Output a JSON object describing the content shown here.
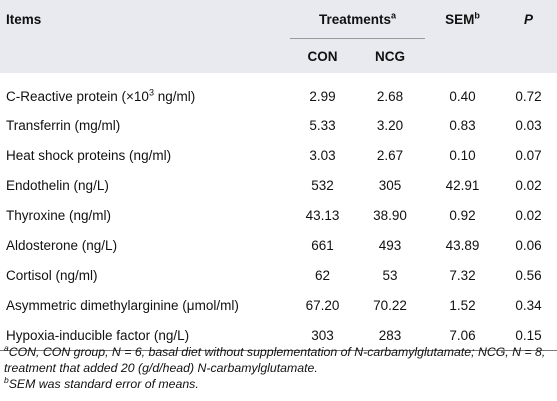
{
  "table": {
    "headers": {
      "items": "Items",
      "treatments": "Treatments",
      "treatments_sup": "a",
      "sem": "SEM",
      "sem_sup": "b",
      "p": "P",
      "con": "CON",
      "ncg": "NCG"
    },
    "rows": [
      {
        "item_pre": "C-Reactive protein (×10",
        "item_sup": "3",
        "item_post": " ng/ml)",
        "con": "2.99",
        "ncg": "2.68",
        "sem": "0.40",
        "p": "0.72"
      },
      {
        "item": "Transferrin (mg/ml)",
        "con": "5.33",
        "ncg": "3.20",
        "sem": "0.83",
        "p": "0.03"
      },
      {
        "item": "Heat shock proteins (ng/ml)",
        "con": "3.03",
        "ncg": "2.67",
        "sem": "0.10",
        "p": "0.07"
      },
      {
        "item": "Endothelin (ng/L)",
        "con": "532",
        "ncg": "305",
        "sem": "42.91",
        "p": "0.02"
      },
      {
        "item": "Thyroxine (ng/ml)",
        "con": "43.13",
        "ncg": "38.90",
        "sem": "0.92",
        "p": "0.02"
      },
      {
        "item": "Aldosterone (ng/L)",
        "con": "661",
        "ncg": "493",
        "sem": "43.89",
        "p": "0.06"
      },
      {
        "item": "Cortisol (ng/ml)",
        "con": "62",
        "ncg": "53",
        "sem": "7.32",
        "p": "0.56"
      },
      {
        "item": "Asymmetric dimethylarginine (μmol/ml)",
        "con": "67.20",
        "ncg": "70.22",
        "sem": "1.52",
        "p": "0.34"
      },
      {
        "item": "Hypoxia-inducible factor (ng/L)",
        "con": "303",
        "ncg": "283",
        "sem": "7.06",
        "p": "0.15"
      }
    ]
  },
  "footnotes": {
    "a_mark": "a",
    "a_text": "CON, CON group, N = 6, basal diet without supplementation of N-carbamylglutamate; NCG, N = 8, treatment that added 20 (g/d/head) N-carbamylglutamate.",
    "b_mark": "b",
    "b_text": "SEM was standard error of means."
  }
}
